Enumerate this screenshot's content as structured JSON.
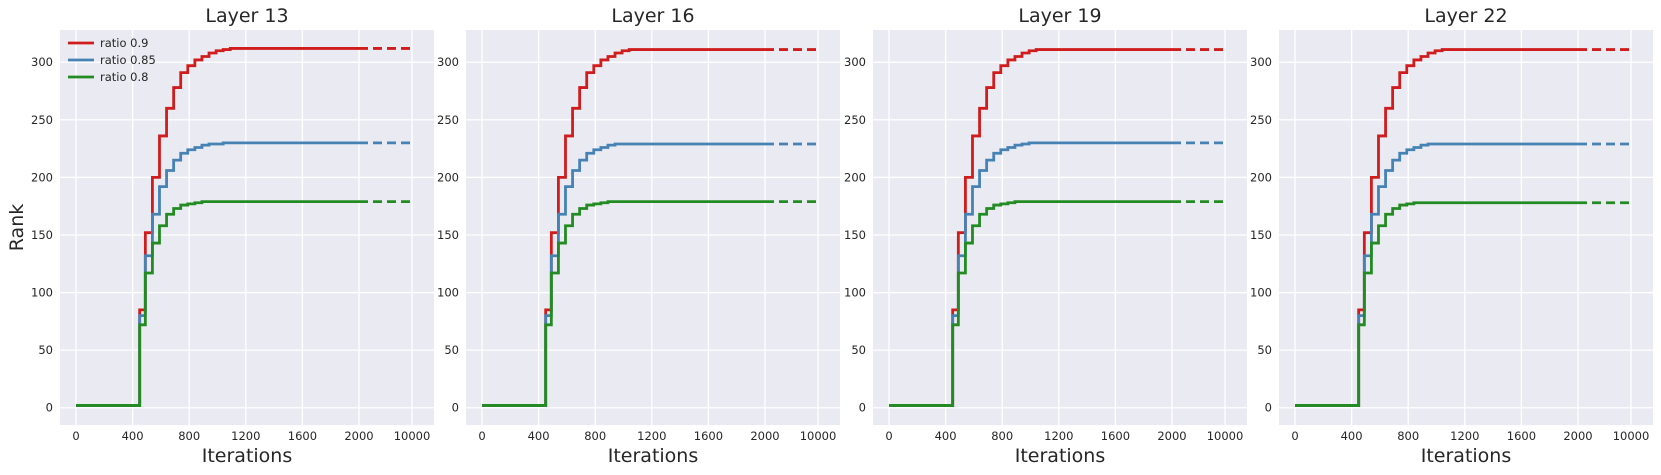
{
  "colors": {
    "ratio_0_9": "#d01c1c",
    "ratio_0_85": "#4682b4",
    "ratio_0_8": "#228b22"
  },
  "chart_data": [
    {
      "type": "line",
      "title": "Layer 13",
      "xlabel": "Iterations",
      "ylabel": "Rank",
      "x_tick_labels": [
        "0",
        "400",
        "800",
        "1200",
        "1600",
        "2000",
        "10000"
      ],
      "x_scale": "linear 0-2000, compressed segment 2000-10000 (dashed)",
      "yticks": [
        0,
        50,
        100,
        150,
        200,
        250,
        300
      ],
      "ylim": [
        -15,
        328
      ],
      "grid": true,
      "legend": {
        "placement": "top-left",
        "entries": [
          "ratio 0.9",
          "ratio 0.85",
          "ratio 0.8"
        ]
      },
      "series": [
        {
          "name": "ratio 0.9",
          "color": "#d01c1c",
          "x": [
            0,
            440,
            450,
            490,
            540,
            590,
            640,
            690,
            740,
            790,
            840,
            890,
            940,
            990,
            1040,
            1090,
            1140,
            2000,
            10000
          ],
          "values": [
            2,
            2,
            85,
            152,
            200,
            236,
            260,
            278,
            291,
            297,
            302,
            305,
            308,
            310,
            311,
            312,
            312,
            312,
            312
          ]
        },
        {
          "name": "ratio 0.85",
          "color": "#4682b4",
          "x": [
            0,
            440,
            450,
            490,
            540,
            590,
            640,
            690,
            740,
            790,
            840,
            890,
            940,
            990,
            1040,
            2000,
            10000
          ],
          "values": [
            2,
            2,
            80,
            132,
            168,
            192,
            206,
            215,
            221,
            224,
            226,
            228,
            229,
            229,
            230,
            230,
            230
          ]
        },
        {
          "name": "ratio 0.8",
          "color": "#228b22",
          "x": [
            0,
            440,
            450,
            490,
            540,
            590,
            640,
            690,
            740,
            790,
            840,
            890,
            2000,
            10000
          ],
          "values": [
            2,
            2,
            72,
            117,
            143,
            158,
            168,
            173,
            176,
            177,
            178,
            179,
            179,
            179
          ]
        }
      ]
    },
    {
      "type": "line",
      "title": "Layer 16",
      "xlabel": "Iterations",
      "x_tick_labels": [
        "0",
        "400",
        "800",
        "1200",
        "1600",
        "2000",
        "10000"
      ],
      "yticks": [
        0,
        50,
        100,
        150,
        200,
        250,
        300
      ],
      "ylim": [
        -15,
        328
      ],
      "grid": true,
      "series": [
        {
          "name": "ratio 0.9",
          "color": "#d01c1c",
          "x": [
            0,
            440,
            450,
            490,
            540,
            590,
            640,
            690,
            740,
            790,
            840,
            890,
            940,
            990,
            1040,
            2000,
            10000
          ],
          "values": [
            2,
            2,
            85,
            152,
            200,
            236,
            260,
            278,
            291,
            297,
            302,
            305,
            308,
            310,
            311,
            311,
            311
          ]
        },
        {
          "name": "ratio 0.85",
          "color": "#4682b4",
          "x": [
            0,
            440,
            450,
            490,
            540,
            590,
            640,
            690,
            740,
            790,
            840,
            890,
            940,
            2000,
            10000
          ],
          "values": [
            2,
            2,
            80,
            132,
            168,
            192,
            206,
            215,
            221,
            224,
            226,
            228,
            229,
            229,
            229
          ]
        },
        {
          "name": "ratio 0.8",
          "color": "#228b22",
          "x": [
            0,
            440,
            450,
            490,
            540,
            590,
            640,
            690,
            740,
            790,
            840,
            890,
            2000,
            10000
          ],
          "values": [
            2,
            2,
            72,
            117,
            143,
            158,
            168,
            173,
            176,
            177,
            178,
            179,
            179,
            179
          ]
        }
      ]
    },
    {
      "type": "line",
      "title": "Layer 19",
      "xlabel": "Iterations",
      "x_tick_labels": [
        "0",
        "400",
        "800",
        "1200",
        "1600",
        "2000",
        "10000"
      ],
      "yticks": [
        0,
        50,
        100,
        150,
        200,
        250,
        300
      ],
      "ylim": [
        -15,
        328
      ],
      "grid": true,
      "series": [
        {
          "name": "ratio 0.9",
          "color": "#d01c1c",
          "x": [
            0,
            440,
            450,
            490,
            540,
            590,
            640,
            690,
            740,
            790,
            840,
            890,
            940,
            990,
            1040,
            1090,
            1140,
            2000,
            10000
          ],
          "values": [
            2,
            2,
            85,
            152,
            200,
            236,
            260,
            278,
            291,
            297,
            302,
            305,
            308,
            310,
            311,
            311,
            311,
            311,
            311
          ]
        },
        {
          "name": "ratio 0.85",
          "color": "#4682b4",
          "x": [
            0,
            440,
            450,
            490,
            540,
            590,
            640,
            690,
            740,
            790,
            840,
            890,
            940,
            990,
            2000,
            10000
          ],
          "values": [
            2,
            2,
            80,
            132,
            168,
            192,
            206,
            215,
            221,
            224,
            226,
            228,
            229,
            230,
            230,
            230
          ]
        },
        {
          "name": "ratio 0.8",
          "color": "#228b22",
          "x": [
            0,
            440,
            450,
            490,
            540,
            590,
            640,
            690,
            740,
            790,
            840,
            890,
            2000,
            10000
          ],
          "values": [
            2,
            2,
            72,
            117,
            143,
            158,
            168,
            173,
            176,
            177,
            178,
            179,
            179,
            179
          ]
        }
      ]
    },
    {
      "type": "line",
      "title": "Layer 22",
      "xlabel": "Iterations",
      "x_tick_labels": [
        "0",
        "400",
        "800",
        "1200",
        "1600",
        "2000",
        "10000"
      ],
      "yticks": [
        0,
        50,
        100,
        150,
        200,
        250,
        300
      ],
      "ylim": [
        -15,
        328
      ],
      "grid": true,
      "series": [
        {
          "name": "ratio 0.9",
          "color": "#d01c1c",
          "x": [
            0,
            440,
            450,
            490,
            540,
            590,
            640,
            690,
            740,
            790,
            840,
            890,
            940,
            990,
            1040,
            1090,
            2000,
            10000
          ],
          "values": [
            2,
            2,
            85,
            152,
            200,
            236,
            260,
            278,
            291,
            297,
            302,
            305,
            308,
            310,
            311,
            311,
            311,
            311
          ]
        },
        {
          "name": "ratio 0.85",
          "color": "#4682b4",
          "x": [
            0,
            440,
            450,
            490,
            540,
            590,
            640,
            690,
            740,
            790,
            840,
            890,
            940,
            2000,
            10000
          ],
          "values": [
            2,
            2,
            80,
            132,
            168,
            192,
            206,
            215,
            221,
            224,
            226,
            228,
            229,
            229,
            229
          ]
        },
        {
          "name": "ratio 0.8",
          "color": "#228b22",
          "x": [
            0,
            440,
            450,
            490,
            540,
            590,
            640,
            690,
            740,
            790,
            840,
            2000,
            10000
          ],
          "values": [
            2,
            2,
            72,
            117,
            143,
            158,
            168,
            173,
            176,
            177,
            178,
            178,
            178
          ]
        }
      ]
    }
  ]
}
